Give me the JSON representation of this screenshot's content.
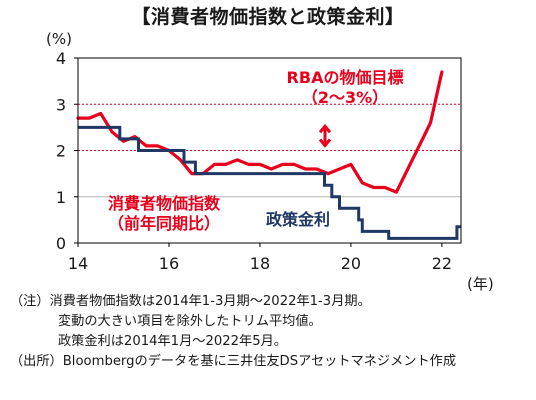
{
  "title": "【消費者物価指数と政策金利】",
  "chart_data": {
    "type": "line",
    "y_unit": "(%)",
    "x_unit": "(年)",
    "xlim": [
      2014,
      2022.42
    ],
    "ylim": [
      0,
      4
    ],
    "x_ticks": [
      {
        "value": 2014,
        "label": "14"
      },
      {
        "value": 2016,
        "label": "16"
      },
      {
        "value": 2018,
        "label": "18"
      },
      {
        "value": 2020,
        "label": "20"
      },
      {
        "value": 2022,
        "label": "22"
      }
    ],
    "y_ticks": [
      0,
      1,
      2,
      3,
      4
    ],
    "target_band": {
      "label": "RBAの物価目標",
      "sublabel": "（2～3%）",
      "range": [
        2,
        3
      ],
      "color": "#e8001c"
    },
    "series": [
      {
        "name": "消費者物価指数",
        "sublabel": "（前年同期比）",
        "color": "#e8001c",
        "x": [
          2014.0,
          2014.25,
          2014.5,
          2014.75,
          2015.0,
          2015.25,
          2015.5,
          2015.75,
          2016.0,
          2016.25,
          2016.5,
          2016.75,
          2017.0,
          2017.25,
          2017.5,
          2017.75,
          2018.0,
          2018.25,
          2018.5,
          2018.75,
          2019.0,
          2019.25,
          2019.5,
          2019.75,
          2020.0,
          2020.25,
          2020.5,
          2020.75,
          2021.0,
          2021.25,
          2021.5,
          2021.75,
          2022.0
        ],
        "values": [
          2.7,
          2.7,
          2.8,
          2.4,
          2.2,
          2.3,
          2.1,
          2.1,
          2.0,
          1.8,
          1.5,
          1.5,
          1.7,
          1.7,
          1.8,
          1.7,
          1.7,
          1.6,
          1.7,
          1.7,
          1.6,
          1.6,
          1.5,
          1.6,
          1.7,
          1.3,
          1.2,
          1.2,
          1.1,
          1.6,
          2.1,
          2.6,
          3.7
        ]
      },
      {
        "name": "政策金利",
        "color": "#1f3864",
        "step_points": [
          [
            2014.0,
            2.5
          ],
          [
            2014.92,
            2.5
          ],
          [
            2014.92,
            2.25
          ],
          [
            2015.33,
            2.25
          ],
          [
            2015.33,
            2.0
          ],
          [
            2016.33,
            2.0
          ],
          [
            2016.33,
            1.75
          ],
          [
            2016.58,
            1.75
          ],
          [
            2016.58,
            1.5
          ],
          [
            2019.42,
            1.5
          ],
          [
            2019.42,
            1.25
          ],
          [
            2019.58,
            1.25
          ],
          [
            2019.58,
            1.0
          ],
          [
            2019.75,
            1.0
          ],
          [
            2019.75,
            0.75
          ],
          [
            2020.17,
            0.75
          ],
          [
            2020.17,
            0.5
          ],
          [
            2020.25,
            0.5
          ],
          [
            2020.25,
            0.25
          ],
          [
            2020.83,
            0.25
          ],
          [
            2020.83,
            0.1
          ],
          [
            2022.33,
            0.1
          ],
          [
            2022.33,
            0.35
          ],
          [
            2022.42,
            0.35
          ]
        ]
      }
    ]
  },
  "notes": [
    "（注）消費者物価指数は2014年1-3月期～2022年1-3月期。",
    "変動の大きい項目を除外したトリム平均値。",
    "政策金利は2014年1月～2022年5月。",
    "（出所）Bloombergのデータを基に三井住友DSアセットマネジメント作成"
  ]
}
